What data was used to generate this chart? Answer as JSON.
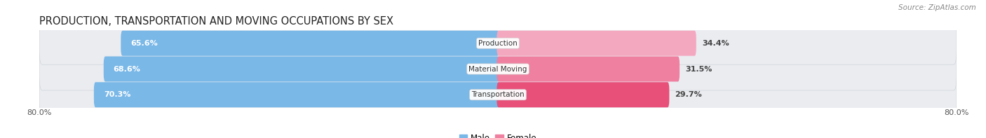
{
  "title": "PRODUCTION, TRANSPORTATION AND MOVING OCCUPATIONS BY SEX",
  "source": "Source: ZipAtlas.com",
  "categories": [
    "Transportation",
    "Material Moving",
    "Production"
  ],
  "male_values": [
    70.3,
    68.6,
    65.6
  ],
  "female_values": [
    29.7,
    31.5,
    34.4
  ],
  "axis_max": 80.0,
  "axis_label_left": "80.0%",
  "axis_label_right": "80.0%",
  "male_color": "#7ab3e0",
  "female_color_top": "#f4a0b8",
  "female_color_bottom": "#f06090",
  "row_bg": "#e8ecf0",
  "row_bg_alt": "#e0e4e8",
  "title_fontsize": 10.5,
  "source_fontsize": 7.5,
  "bar_height": 0.58,
  "figsize": [
    14.06,
    1.97
  ],
  "dpi": 100
}
